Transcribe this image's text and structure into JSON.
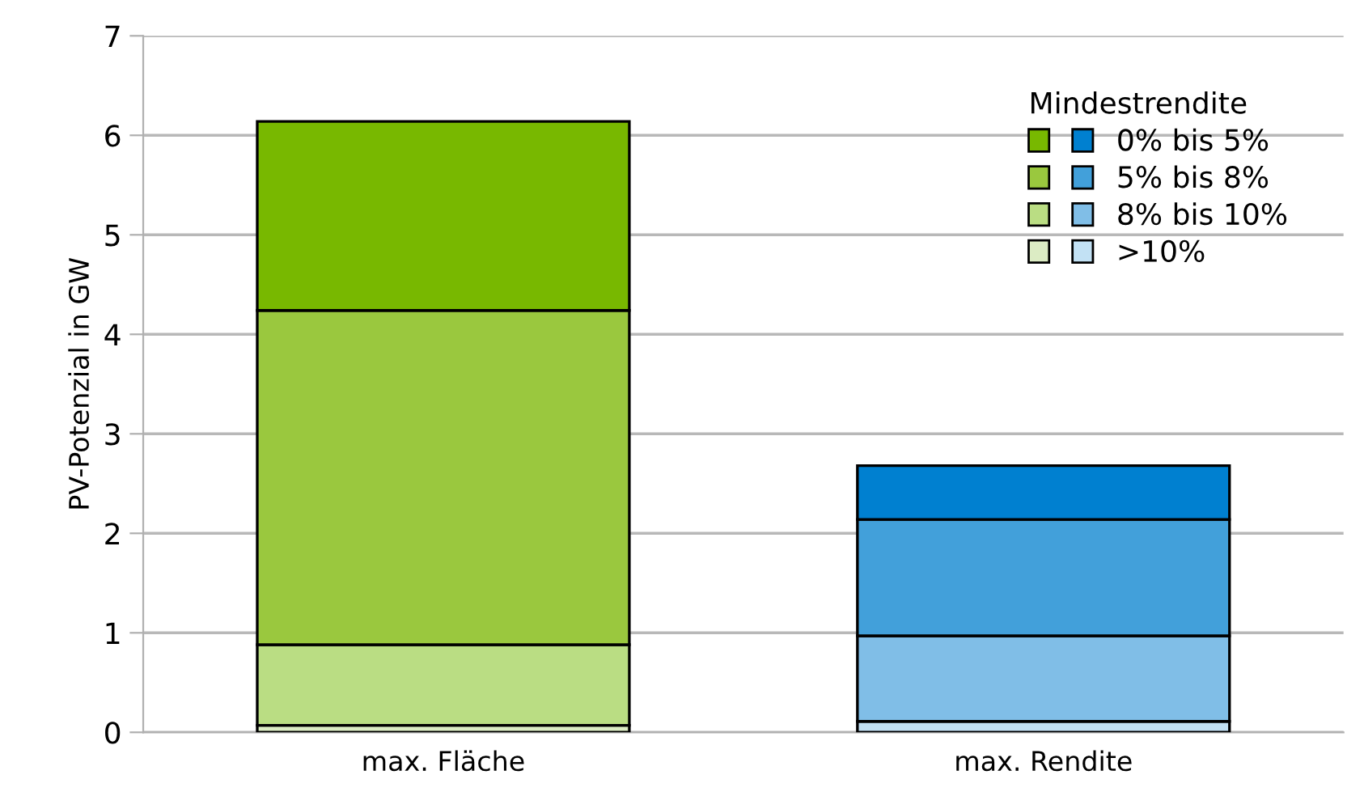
{
  "chart_data": {
    "type": "bar",
    "stacked": true,
    "ylabel": "PV-Potenzial in GW",
    "legend_title": "Mindestrendite",
    "categories": [
      "max. Fläche",
      "max. Rendite"
    ],
    "series": [
      {
        "name": ">10%",
        "colors": [
          "#dcecc4",
          "#c2e1f4"
        ],
        "values": [
          0.07,
          0.11
        ]
      },
      {
        "name": "8% bis 10%",
        "colors": [
          "#badd83",
          "#80bee7"
        ],
        "values": [
          0.81,
          0.86
        ]
      },
      {
        "name": "5% bis 8%",
        "colors": [
          "#9ac83e",
          "#42a0da"
        ],
        "values": [
          3.36,
          1.17
        ]
      },
      {
        "name": "0% bis 5%",
        "colors": [
          "#78b800",
          "#0080d0"
        ],
        "values": [
          1.9,
          0.54
        ]
      }
    ],
    "ylim": [
      0,
      7
    ],
    "yticks": [
      0,
      1,
      2,
      3,
      4,
      5,
      6,
      7
    ],
    "grid": "y",
    "legend": "top right"
  }
}
